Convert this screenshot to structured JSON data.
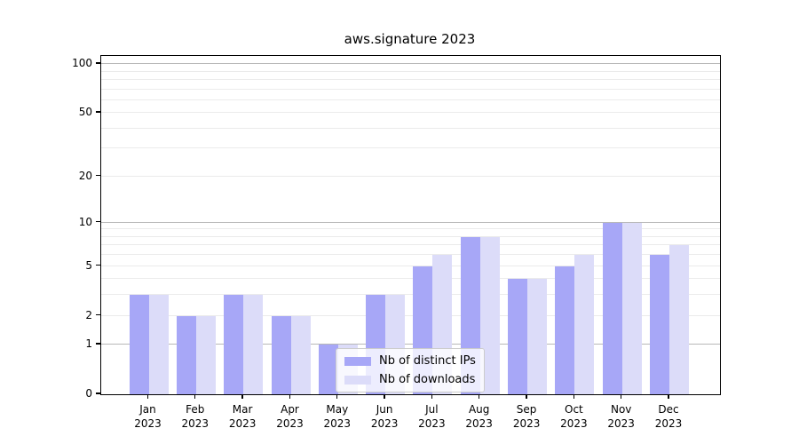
{
  "title": "aws.signature 2023",
  "chart_data": {
    "type": "bar",
    "title": "aws.signature 2023",
    "yscale": "log1p",
    "ylim": [
      0,
      112
    ],
    "grid": "on",
    "legend_position": "lower-center-inside",
    "categories": [
      {
        "month": "Jan",
        "year": "2023"
      },
      {
        "month": "Feb",
        "year": "2023"
      },
      {
        "month": "Mar",
        "year": "2023"
      },
      {
        "month": "Apr",
        "year": "2023"
      },
      {
        "month": "May",
        "year": "2023"
      },
      {
        "month": "Jun",
        "year": "2023"
      },
      {
        "month": "Jul",
        "year": "2023"
      },
      {
        "month": "Aug",
        "year": "2023"
      },
      {
        "month": "Sep",
        "year": "2023"
      },
      {
        "month": "Oct",
        "year": "2023"
      },
      {
        "month": "Nov",
        "year": "2023"
      },
      {
        "month": "Dec",
        "year": "2023"
      }
    ],
    "series": [
      {
        "name": "Nb of distinct IPs",
        "color": "#a7a7f7",
        "values": [
          3,
          2,
          3,
          2,
          1,
          3,
          5,
          8,
          4,
          5,
          10,
          6
        ]
      },
      {
        "name": "Nb of downloads",
        "color": "#dcdcf9",
        "values": [
          3,
          2,
          3,
          2,
          1,
          3,
          6,
          8,
          4,
          6,
          10,
          7
        ]
      }
    ],
    "yticks": [
      0,
      1,
      2,
      5,
      10,
      20,
      50,
      100
    ],
    "major_gridlines": [
      1,
      10,
      100
    ],
    "minor_gridlines": [
      2,
      3,
      4,
      5,
      6,
      7,
      8,
      9,
      20,
      30,
      40,
      50,
      60,
      70,
      80,
      90
    ],
    "axis_color": "#000000",
    "major_grid_color": "#b8b8b8",
    "minor_grid_color": "#ebebeb"
  }
}
